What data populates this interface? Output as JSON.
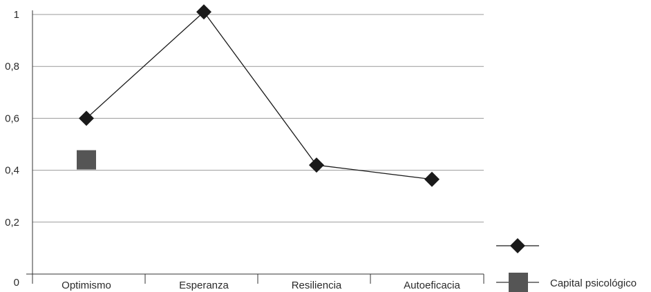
{
  "chart_data": {
    "type": "line",
    "title": "",
    "xlabel": "",
    "ylabel": "",
    "categories": [
      "Optimismo",
      "Esperanza",
      "Resiliencia",
      "Autoeficacia"
    ],
    "y_ticks": [
      "0",
      "0,2",
      "0,4",
      "0,6",
      "0,8",
      "1"
    ],
    "ylim": [
      0,
      1
    ],
    "grid": true,
    "legend_position": "bottom-right",
    "series": [
      {
        "name": "",
        "marker": "diamond",
        "color": "#1a1a1a",
        "values": [
          0.6,
          1.01,
          0.42,
          0.365
        ]
      },
      {
        "name": "Capital psicológico",
        "marker": "square",
        "color": "#555555",
        "values": [
          0.44,
          null,
          null,
          null
        ]
      }
    ]
  }
}
